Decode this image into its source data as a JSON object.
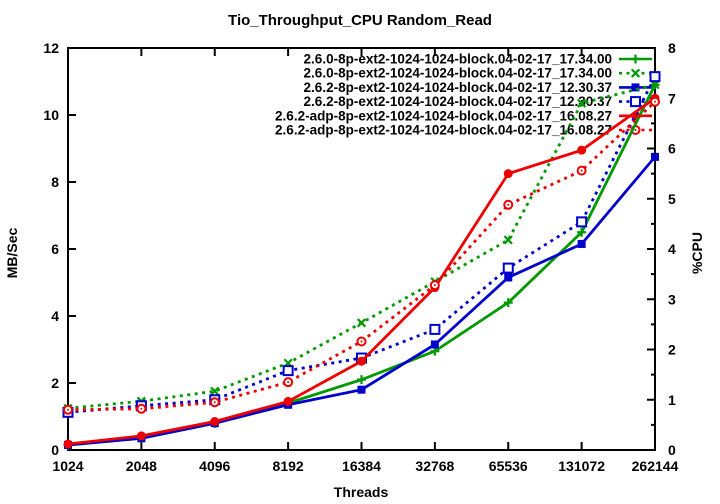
{
  "chart_data": {
    "type": "line",
    "title": "Tio_Throughput_CPU Random_Read",
    "xlabel": "Threads",
    "ylabel_left": "MB/Sec",
    "ylabel_right": "%CPU",
    "x_categories": [
      "1024",
      "2048",
      "4096",
      "8192",
      "16384",
      "32768",
      "65536",
      "131072",
      "262144"
    ],
    "left_axis": {
      "min": 0,
      "max": 12,
      "ticks": [
        "0",
        "2",
        "4",
        "6",
        "8",
        "10",
        "12"
      ]
    },
    "right_axis": {
      "min": 0,
      "max": 8,
      "ticks": [
        "0",
        "1",
        "2",
        "3",
        "4",
        "5",
        "6",
        "7",
        "8"
      ],
      "minor_step": 0.5
    },
    "grid": false,
    "legend_position": "top-center-inside",
    "series": [
      {
        "name": "2.6.0-8p-ext2-1024-1024-block.04-02-17_17.34.00",
        "color": "#009900",
        "line": "solid",
        "marker": "plus",
        "axis": "left",
        "unit": "MB/Sec",
        "values": [
          0.15,
          0.35,
          0.8,
          1.4,
          2.1,
          2.95,
          4.4,
          6.5,
          10.9
        ]
      },
      {
        "name": "2.6.0-8p-ext2-1024-1024-block.04-02-17_17.34.00",
        "color": "#009900",
        "line": "dashed",
        "marker": "cross",
        "axis": "right",
        "unit": "%CPU",
        "values": [
          0.83,
          0.97,
          1.17,
          1.73,
          2.53,
          3.35,
          4.18,
          6.9,
          7.27
        ]
      },
      {
        "name": "2.6.2-8p-ext2-1024-1024-block.04-02-17_12.30.37",
        "color": "#0000cc",
        "line": "solid",
        "marker": "square-filled",
        "axis": "left",
        "unit": "MB/Sec",
        "values": [
          0.15,
          0.35,
          0.8,
          1.35,
          1.8,
          3.15,
          5.15,
          6.15,
          8.75
        ]
      },
      {
        "name": "2.6.2-8p-ext2-1024-1024-block.04-02-17_12.30.37",
        "color": "#0000cc",
        "line": "dashed",
        "marker": "square-open",
        "axis": "right",
        "unit": "%CPU",
        "values": [
          0.75,
          0.88,
          1.0,
          1.58,
          1.83,
          2.4,
          3.62,
          4.54,
          7.43
        ]
      },
      {
        "name": "2.6.2-adp-8p-ext2-1024-1024-block.04-02-17_16.08.27",
        "color": "#ee0000",
        "line": "solid",
        "marker": "circle-filled",
        "axis": "left",
        "unit": "MB/Sec",
        "values": [
          0.18,
          0.42,
          0.85,
          1.45,
          2.65,
          4.85,
          8.25,
          8.95,
          10.5
        ]
      },
      {
        "name": "2.6.2-adp-8p-ext2-1024-1024-block.04-02-17_16.08.27",
        "color": "#ee0000",
        "line": "dashed",
        "marker": "circle-open",
        "axis": "right",
        "unit": "%CPU",
        "values": [
          0.8,
          0.82,
          0.95,
          1.35,
          2.16,
          3.28,
          4.88,
          5.56,
          6.93
        ]
      }
    ]
  }
}
